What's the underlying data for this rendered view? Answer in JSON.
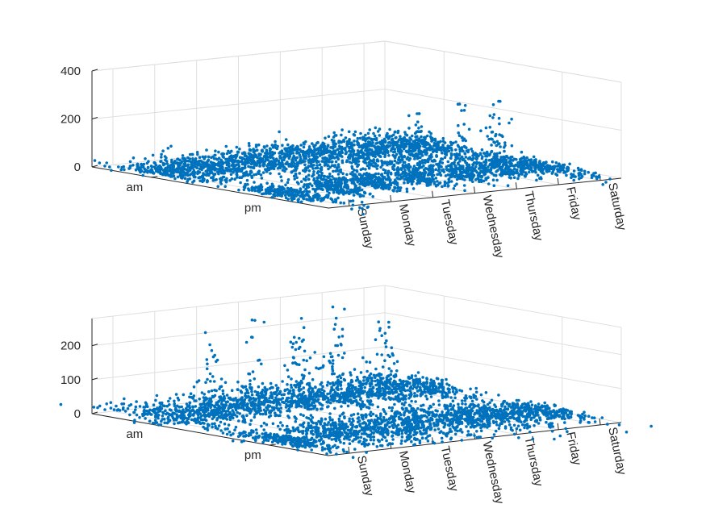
{
  "chart_data": [
    {
      "type": "scatter",
      "subtype": "3d-swarm",
      "x_categories": [
        "Sunday",
        "Monday",
        "Tuesday",
        "Wednesday",
        "Thursday",
        "Friday",
        "Saturday"
      ],
      "y_categories": [
        "am",
        "pm"
      ],
      "zticks": [
        "0",
        "200",
        "400"
      ],
      "zlim": [
        0,
        400
      ],
      "grid": true,
      "marker_color": "#0072BD",
      "clusters": [
        {
          "day": "Sunday",
          "period": "am",
          "peak": 50
        },
        {
          "day": "Monday",
          "period": "am",
          "peak": 55
        },
        {
          "day": "Tuesday",
          "period": "am",
          "peak": 60
        },
        {
          "day": "Wednesday",
          "period": "am",
          "peak": 65
        },
        {
          "day": "Thursday",
          "period": "am",
          "peak": 70
        },
        {
          "day": "Friday",
          "period": "am",
          "peak": 75
        },
        {
          "day": "Saturday",
          "period": "am",
          "peak": 80
        },
        {
          "day": "Sunday",
          "period": "pm",
          "peak": 30
        },
        {
          "day": "Monday",
          "period": "pm",
          "peak": 240
        },
        {
          "day": "Tuesday",
          "period": "pm",
          "peak": 275
        },
        {
          "day": "Wednesday",
          "period": "pm",
          "peak": 290
        },
        {
          "day": "Thursday",
          "period": "pm",
          "peak": 310
        },
        {
          "day": "Friday",
          "period": "pm",
          "peak": 305
        },
        {
          "day": "Saturday",
          "period": "pm",
          "peak": 45
        }
      ]
    },
    {
      "type": "scatter",
      "subtype": "3d-swarm",
      "x_categories": [
        "Sunday",
        "Monday",
        "Tuesday",
        "Wednesday",
        "Thursday",
        "Friday",
        "Saturday"
      ],
      "y_categories": [
        "am",
        "pm"
      ],
      "zticks": [
        "0",
        "100",
        "200"
      ],
      "zlim": [
        0,
        280
      ],
      "grid": true,
      "marker_color": "#0072BD",
      "clusters": [
        {
          "day": "Sunday",
          "period": "am",
          "peak": 70
        },
        {
          "day": "Monday",
          "period": "am",
          "peak": 245
        },
        {
          "day": "Tuesday",
          "period": "am",
          "peak": 270
        },
        {
          "day": "Wednesday",
          "period": "am",
          "peak": 265
        },
        {
          "day": "Thursday",
          "period": "am",
          "peak": 280
        },
        {
          "day": "Friday",
          "period": "am",
          "peak": 250
        },
        {
          "day": "Saturday",
          "period": "am",
          "peak": 60
        },
        {
          "day": "Sunday",
          "period": "pm",
          "peak": 20
        },
        {
          "day": "Monday",
          "period": "pm",
          "peak": 50
        },
        {
          "day": "Tuesday",
          "period": "pm",
          "peak": 55
        },
        {
          "day": "Wednesday",
          "period": "pm",
          "peak": 60
        },
        {
          "day": "Thursday",
          "period": "pm",
          "peak": 60
        },
        {
          "day": "Friday",
          "period": "pm",
          "peak": 45
        },
        {
          "day": "Saturday",
          "period": "pm",
          "peak": 35
        }
      ]
    }
  ]
}
